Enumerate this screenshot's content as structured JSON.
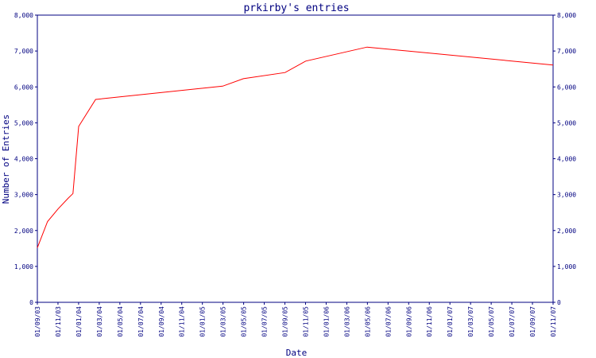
{
  "chart_data": {
    "type": "line",
    "title": "prkirby's entries",
    "xlabel": "Date",
    "ylabel": "Number of Entries",
    "ylim": [
      0,
      8000
    ],
    "y_ticks": [
      0,
      1000,
      2000,
      3000,
      4000,
      5000,
      6000,
      7000,
      8000
    ],
    "y_tick_labels": [
      "0",
      "1,000",
      "2,000",
      "3,000",
      "4,000",
      "5,000",
      "6,000",
      "7,000",
      "8,000"
    ],
    "x_tick_labels": [
      "01/09/03",
      "01/11/03",
      "01/01/04",
      "01/03/04",
      "01/05/04",
      "01/07/04",
      "01/09/04",
      "01/11/04",
      "01/01/05",
      "01/03/05",
      "01/05/05",
      "01/07/05",
      "01/09/05",
      "01/11/05",
      "01/01/06",
      "01/03/06",
      "01/05/06",
      "01/07/06",
      "01/09/06",
      "01/11/06",
      "01/01/07",
      "01/03/07",
      "01/05/07",
      "01/07/07",
      "01/09/07",
      "01/11/07"
    ],
    "x_range": [
      "2003-09-01",
      "2007-11-01"
    ],
    "series": [
      {
        "color": "#ff0000",
        "points": [
          {
            "x": "2003-09-01",
            "y": 1520
          },
          {
            "x": "2003-10-01",
            "y": 2250
          },
          {
            "x": "2003-11-01",
            "y": 2600
          },
          {
            "x": "2003-12-01",
            "y": 2900
          },
          {
            "x": "2003-12-15",
            "y": 3030
          },
          {
            "x": "2004-01-01",
            "y": 4900
          },
          {
            "x": "2004-02-20",
            "y": 5650
          },
          {
            "x": "2005-03-01",
            "y": 6020
          },
          {
            "x": "2005-05-01",
            "y": 6230
          },
          {
            "x": "2005-09-01",
            "y": 6400
          },
          {
            "x": "2005-11-01",
            "y": 6720
          },
          {
            "x": "2006-05-01",
            "y": 7110
          },
          {
            "x": "2007-11-01",
            "y": 6610
          }
        ]
      }
    ],
    "grid": false,
    "mirror_y_axis": true,
    "axis_color": "#000080"
  }
}
